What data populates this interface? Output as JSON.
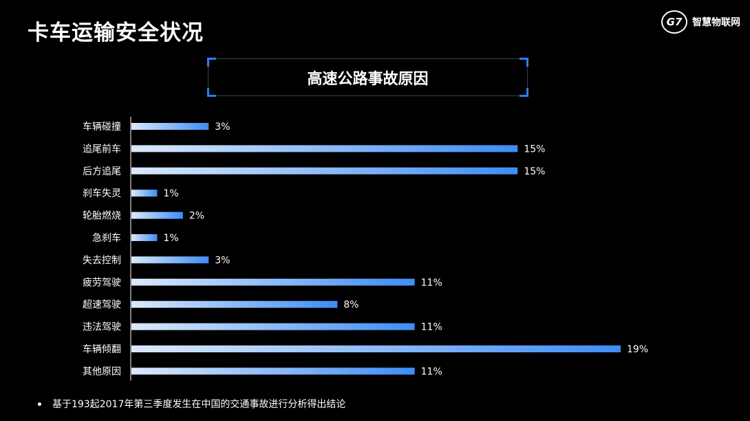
{
  "page": {
    "title": "卡车运输安全状况",
    "brand_mark": "G7",
    "brand_name": "智慧物联网",
    "footnote": "基于193起2017年第三季度发生在中国的交通事故进行分析得出结论"
  },
  "chart_data": {
    "type": "bar",
    "orientation": "horizontal",
    "title": "高速公路事故原因",
    "categories": [
      "车辆碰撞",
      "追尾前车",
      "后方追尾",
      "刹车失灵",
      "轮胎燃烧",
      "急刹车",
      "失去控制",
      "疲劳驾驶",
      "超速驾驶",
      "违法驾驶",
      "车辆倾翻",
      "其他原因"
    ],
    "values": [
      3,
      15,
      15,
      1,
      2,
      1,
      3,
      11,
      8,
      11,
      19,
      11
    ],
    "labels": [
      "3%",
      "15%",
      "15%",
      "1%",
      "2%",
      "1%",
      "3%",
      "11%",
      "8%",
      "11%",
      "19%",
      "11%"
    ],
    "unit": "%",
    "xlim": [
      0,
      19
    ],
    "grid": false,
    "legend": "none",
    "colors": {
      "bar_start": "#dbe9fb",
      "bar_end": "#3e8df5",
      "axis": "#ffffff",
      "background": "#000000",
      "accent": "#2f7ef5"
    }
  }
}
